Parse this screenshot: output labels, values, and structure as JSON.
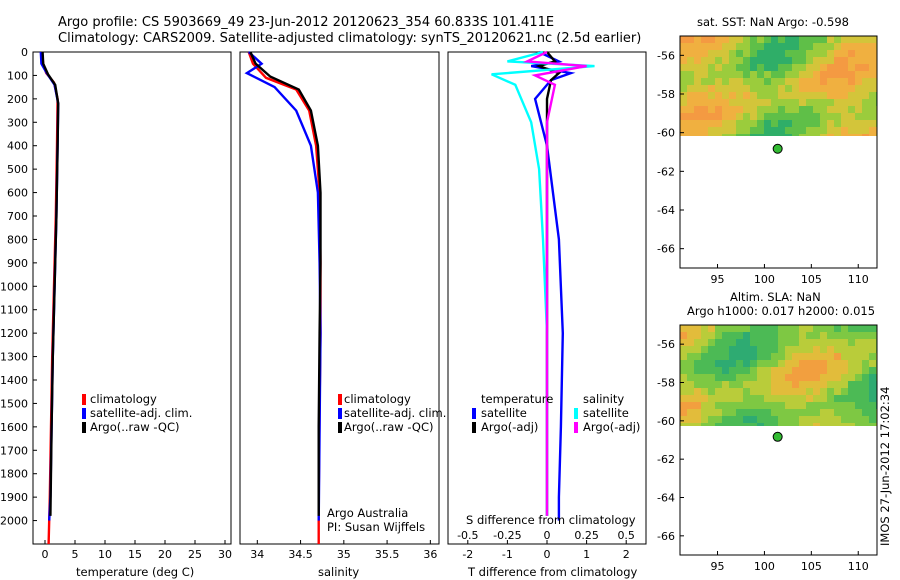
{
  "header": {
    "line1": "Argo profile: CS 5903669_49 23-Jun-2012 20120623_354 60.833S 101.411E",
    "line2": "Climatology: CARS2009. Satellite-adjusted climatology: synTS_20120621.nc (2.5d earlier)"
  },
  "colors": {
    "climatology": "#ff0000",
    "satellite": "#0000ff",
    "argo": "#000000",
    "satellite_s": "#00ffff",
    "argo_s": "#ff00ff",
    "sst_hi": "#f6b444",
    "sst_lo": "#36b95b"
  },
  "chart_data": [
    {
      "id": "temperature",
      "type": "line",
      "xlabel": "temperature (deg C)",
      "xlim": [
        -2,
        31
      ],
      "xticks": [
        "0",
        "5",
        "10",
        "15",
        "20",
        "25",
        "30"
      ],
      "ylim": [
        0,
        2100
      ],
      "yticks": [
        "0",
        "100",
        "200",
        "300",
        "400",
        "500",
        "600",
        "700",
        "800",
        "900",
        "1000",
        "1100",
        "1200",
        "1300",
        "1400",
        "1500",
        "1600",
        "1700",
        "1800",
        "1900",
        "2000"
      ],
      "legend": [
        "climatology",
        "satellite-adj. clim.",
        "Argo(..raw -QC)"
      ],
      "series": [
        {
          "name": "climatology",
          "color": "#ff0000",
          "x": [
            -0.5,
            -0.3,
            0.2,
            1.5,
            2.1,
            2.0,
            1.8,
            1.5,
            1.2,
            1.0,
            0.8,
            0.6
          ],
          "y": [
            0,
            50,
            90,
            130,
            200,
            400,
            700,
            1000,
            1300,
            1600,
            1900,
            2100
          ]
        },
        {
          "name": "satellite-adj. clim.",
          "color": "#0000ff",
          "x": [
            -0.7,
            -0.6,
            0.3,
            1.6,
            2.2,
            2.1,
            1.9,
            1.6,
            1.3,
            1.1,
            0.9,
            0.7
          ],
          "y": [
            0,
            50,
            90,
            140,
            220,
            400,
            700,
            1000,
            1300,
            1600,
            1900,
            2000
          ]
        },
        {
          "name": "Argo(..raw -QC)",
          "color": "#000000",
          "x": [
            -0.4,
            -0.3,
            0.5,
            1.7,
            2.2,
            2.1,
            1.9,
            1.6,
            1.3,
            1.1,
            0.9
          ],
          "y": [
            0,
            50,
            95,
            140,
            220,
            400,
            700,
            1000,
            1300,
            1600,
            1980
          ]
        }
      ]
    },
    {
      "id": "salinity",
      "type": "line",
      "xlabel": "salinity",
      "xlim": [
        33.8,
        36.1
      ],
      "xticks": [
        "34",
        "34.5",
        "35",
        "35.5",
        "36"
      ],
      "ylim": [
        0,
        2100
      ],
      "legend": [
        "climatology",
        "satellite-adj. clim.",
        "Argo(..raw -QC)"
      ],
      "annotation": [
        "Argo Australia",
        "PI: Susan Wijffels"
      ],
      "series": [
        {
          "name": "climatology",
          "color": "#ff0000",
          "x": [
            33.9,
            33.95,
            34.1,
            34.45,
            34.6,
            34.68,
            34.72,
            34.73,
            34.73,
            34.72,
            34.71,
            34.71
          ],
          "y": [
            0,
            50,
            110,
            160,
            250,
            400,
            600,
            900,
            1200,
            1500,
            1900,
            2100
          ]
        },
        {
          "name": "satellite-adj. clim.",
          "color": "#0000ff",
          "x": [
            33.9,
            34.05,
            33.88,
            34.2,
            34.45,
            34.62,
            34.7,
            34.72,
            34.73,
            34.72,
            34.71
          ],
          "y": [
            0,
            50,
            90,
            150,
            250,
            400,
            600,
            900,
            1200,
            1600,
            2000
          ]
        },
        {
          "name": "Argo(..raw -QC)",
          "color": "#000000",
          "x": [
            33.92,
            33.98,
            34.15,
            34.48,
            34.62,
            34.7,
            34.73,
            34.73,
            34.72,
            34.71,
            34.71
          ],
          "y": [
            0,
            50,
            105,
            160,
            250,
            400,
            600,
            900,
            1200,
            1600,
            1980
          ]
        }
      ]
    },
    {
      "id": "difference",
      "type": "line",
      "xlabel": "T difference from climatology",
      "xlabel2": "S difference from climatology",
      "xlim": [
        -2.5,
        2.5
      ],
      "xticks": [
        "-2",
        "-1",
        "0",
        "1",
        "2"
      ],
      "xticks2": [
        "-0.5",
        "-0.25",
        "0",
        "0.25",
        "0.5"
      ],
      "ylim": [
        0,
        2100
      ],
      "legend_left_title": "temperature",
      "legend_right_title": "salinity",
      "legend": [
        "satellite",
        "Argo(-adj)",
        "satellite",
        "Argo(-adj)"
      ],
      "series": [
        {
          "name": "T satellite",
          "color": "#0000ff",
          "x": [
            -0.2,
            0.3,
            -0.4,
            0.6,
            0.1,
            -0.3,
            0.0,
            0.3,
            0.4,
            0.35,
            0.3,
            0.3
          ],
          "y": [
            0,
            40,
            60,
            90,
            120,
            200,
            400,
            800,
            1200,
            1600,
            1900,
            2000
          ]
        },
        {
          "name": "T Argo(-adj)",
          "color": "#000000",
          "x": [
            0.0,
            0.2,
            -0.2,
            0.3,
            0.1,
            0.0,
            0.0,
            0.0,
            0.0,
            0.0,
            0.0
          ],
          "y": [
            0,
            40,
            60,
            90,
            120,
            200,
            400,
            800,
            1200,
            1600,
            1980
          ]
        },
        {
          "name": "S satellite",
          "color": "#00ffff",
          "x": [
            -0.1,
            -1.0,
            1.2,
            -1.4,
            -0.8,
            -0.4,
            -0.2,
            -0.1,
            0.0,
            0.0,
            0.0
          ],
          "y": [
            0,
            40,
            60,
            95,
            140,
            300,
            500,
            800,
            1200,
            1600,
            1980
          ]
        },
        {
          "name": "S Argo(-adj)",
          "color": "#ff00ff",
          "x": [
            0.0,
            -0.5,
            1.0,
            -0.3,
            0.2,
            0.0,
            0.0,
            0.0,
            0.0,
            0.0
          ],
          "y": [
            0,
            40,
            60,
            100,
            140,
            300,
            600,
            1000,
            1500,
            1980
          ]
        }
      ]
    },
    {
      "id": "sst-map",
      "type": "heatmap",
      "title": "sat. SST: NaN Argo: -0.598",
      "xlim": [
        91,
        112
      ],
      "ylim": [
        -67,
        -55
      ],
      "xticks": [
        "95",
        "100",
        "105",
        "110"
      ],
      "yticks": [
        "-56",
        "-58",
        "-60",
        "-62",
        "-64",
        "-66"
      ],
      "marker": {
        "lon": 101.411,
        "lat": -60.833
      }
    },
    {
      "id": "sla-map",
      "type": "heatmap",
      "title": "Altim. SLA: NaN",
      "subtitle": "Argo h1000: 0.017 h2000: 0.015",
      "xlim": [
        91,
        112
      ],
      "ylim": [
        -67,
        -55
      ],
      "xticks": [
        "95",
        "100",
        "105",
        "110"
      ],
      "yticks": [
        "-56",
        "-58",
        "-60",
        "-62",
        "-64",
        "-66"
      ],
      "marker": {
        "lon": 101.411,
        "lat": -60.833
      }
    }
  ],
  "footer": {
    "stamp": "IMOS 27-Jun-2012 17:02:34"
  }
}
